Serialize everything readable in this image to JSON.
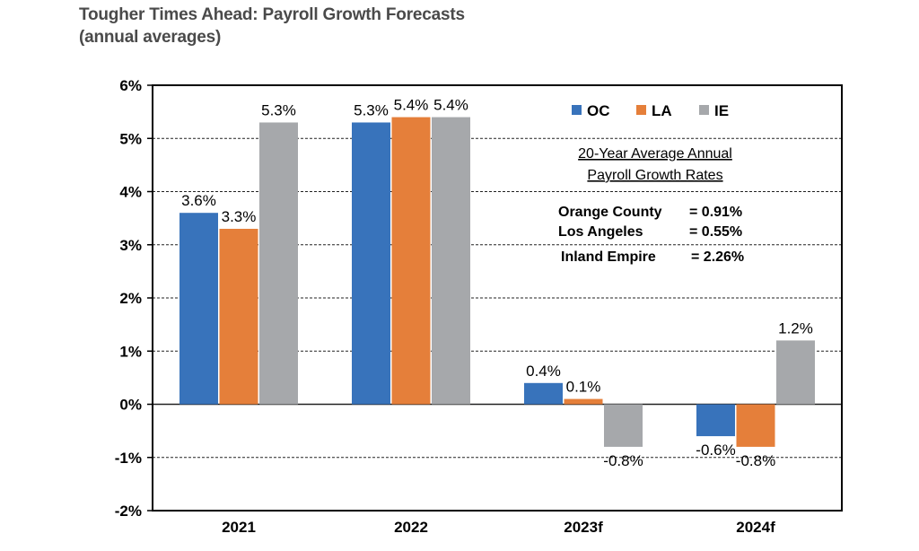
{
  "title_line1": "Tougher Times Ahead: Payroll Growth Forecasts",
  "title_line2": "(annual averages)",
  "chart_data": {
    "type": "bar",
    "categories": [
      "2021",
      "2022",
      "2023f",
      "2024f"
    ],
    "series": [
      {
        "name": "OC",
        "color": "#3873bb",
        "values": [
          3.6,
          5.3,
          0.4,
          -0.6
        ],
        "labels": [
          "3.6%",
          "5.3%",
          "0.4%",
          "-0.6%"
        ]
      },
      {
        "name": "LA",
        "color": "#e57f3a",
        "values": [
          3.3,
          5.4,
          0.1,
          -0.8
        ],
        "labels": [
          "3.3%",
          "5.4%",
          "0.1%",
          "-0.8%"
        ]
      },
      {
        "name": "IE",
        "color": "#a6a8ab",
        "values": [
          5.3,
          5.4,
          -0.8,
          1.2
        ],
        "labels": [
          "5.3%",
          "5.4%",
          "-0.8%",
          "1.2%"
        ]
      }
    ],
    "ylim": [
      -2,
      6
    ],
    "yticks": [
      6,
      5,
      4,
      3,
      2,
      1,
      0,
      -1,
      -2
    ],
    "ytick_labels": [
      "6%",
      "5%",
      "4%",
      "3%",
      "2%",
      "1%",
      "0%",
      "-1%",
      "-2%"
    ],
    "gridlines": "dashed",
    "legend_placement": "top-right",
    "annotation": {
      "title_line1": "20-Year Average Annual",
      "title_line2": "Payroll Growth Rates",
      "rows": [
        {
          "name": "Orange County",
          "value": "= 0.91%"
        },
        {
          "name": "Los Angeles",
          "value": "= 0.55%"
        },
        {
          "name": "Inland Empire",
          "value": "= 2.26%"
        }
      ]
    }
  }
}
